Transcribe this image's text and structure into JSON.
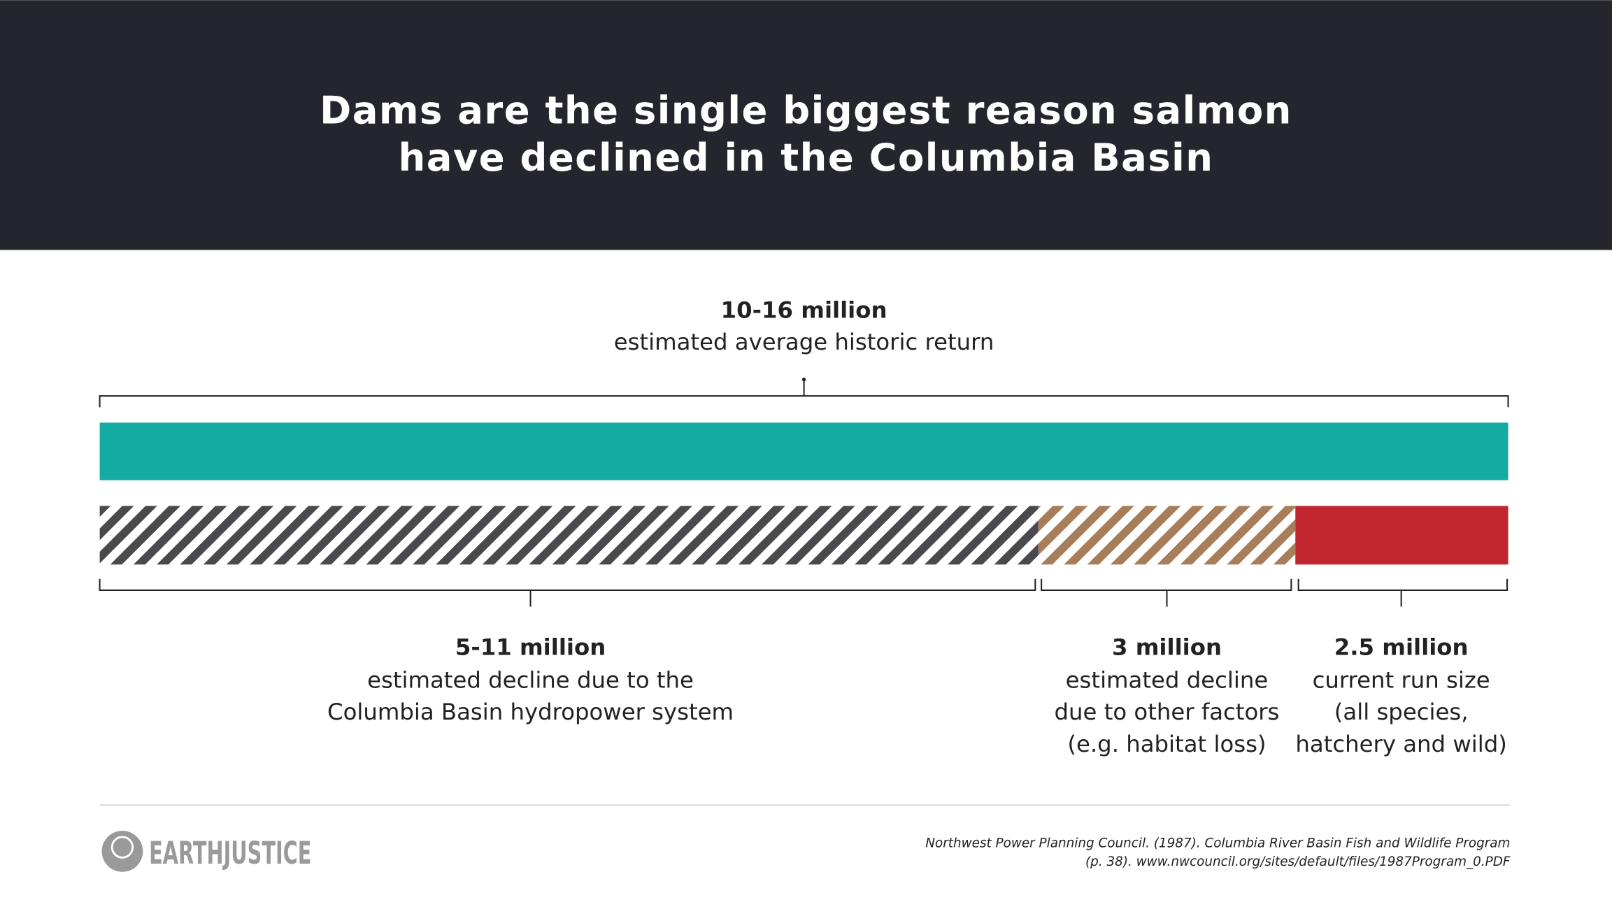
{
  "header": {
    "title_lines": [
      "Dams are the single biggest reason salmon",
      "have declined in the Columbia Basin"
    ]
  },
  "total": {
    "amount": "10-16 million",
    "description": "estimated average historic return"
  },
  "segments": [
    {
      "amount": "5-11 million",
      "description_lines": [
        "estimated decline due to the",
        "Columbia Basin hydropower system"
      ]
    },
    {
      "amount": "3 million",
      "description_lines": [
        "estimated decline",
        "due to other factors",
        "(e.g. habitat loss)"
      ]
    },
    {
      "amount": "2.5 million",
      "description_lines": [
        "current run size",
        "(all species,",
        "hatchery and wild)"
      ]
    }
  ],
  "footer": {
    "logo": "EARTHJUSTICE",
    "source_lines": [
      "Northwest Power Planning Council. (1987). Columbia River Basin Fish and Wildlife Program",
      "(p. 38). www.nwcouncil.org/sites/default/files/1987Program_0.PDF"
    ]
  }
}
